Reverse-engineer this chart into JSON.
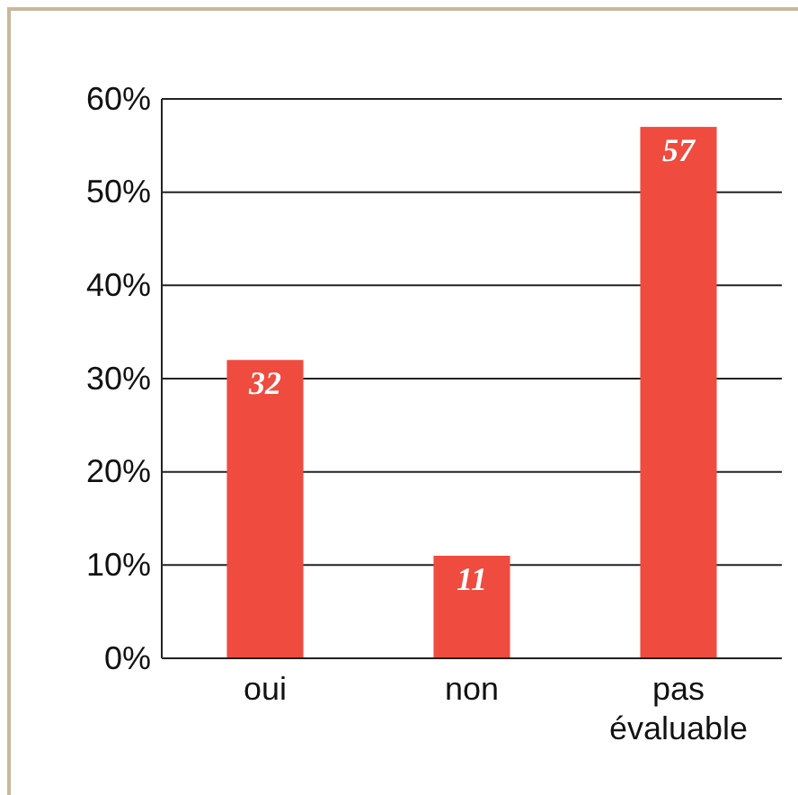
{
  "chart_data": {
    "type": "bar",
    "categories": [
      "oui",
      "non",
      "pas évaluable"
    ],
    "values": [
      32,
      11,
      57
    ],
    "color": "#ef4b3f",
    "ylim": [
      0,
      60
    ],
    "yticks": [
      {
        "value": 0,
        "label": "0%"
      },
      {
        "value": 10,
        "label": "10%"
      },
      {
        "value": 20,
        "label": "20%"
      },
      {
        "value": 30,
        "label": "30%"
      },
      {
        "value": 40,
        "label": "40%"
      },
      {
        "value": 50,
        "label": "50%"
      },
      {
        "value": 60,
        "label": "60%"
      }
    ],
    "grid": "y",
    "data_labels": true
  }
}
